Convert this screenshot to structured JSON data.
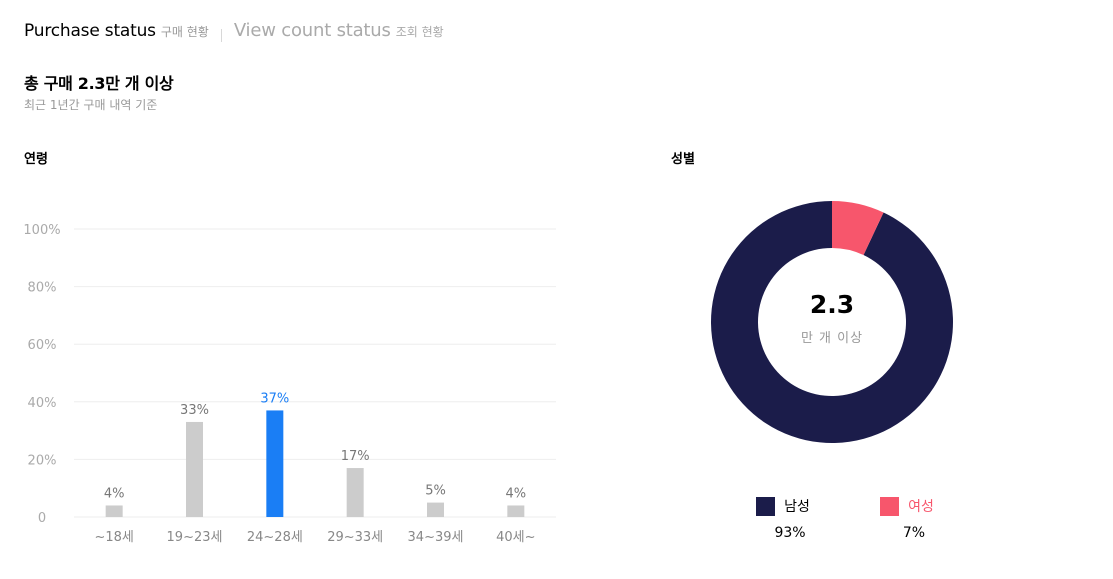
{
  "tabs": [
    {
      "label": "Purchase status",
      "sublabel": "구매 현황",
      "active": true
    },
    {
      "label": "View count status",
      "sublabel": "조회 현황",
      "active": false
    }
  ],
  "summary": {
    "headline": "총 구매 2.3만 개 이상",
    "subline": "최근 1년간 구매 내역 기준"
  },
  "colors": {
    "bar_default": "#cccccc",
    "bar_highlight": "#1a7ef5",
    "male": "#1b1c4a",
    "female": "#f7566c",
    "axis_text": "#aaaaaa",
    "grid": "#eeeeee"
  },
  "chart_data": [
    {
      "type": "bar",
      "title": "연령",
      "categories": [
        "~18세",
        "19~23세",
        "24~28세",
        "29~33세",
        "34~39세",
        "40세~"
      ],
      "values": [
        4,
        33,
        37,
        17,
        5,
        4
      ],
      "value_labels": [
        "4%",
        "33%",
        "37%",
        "17%",
        "5%",
        "4%"
      ],
      "highlight_index": 2,
      "ylim": [
        0,
        100
      ],
      "yticks": [
        0,
        20,
        40,
        60,
        80,
        100
      ],
      "ytick_labels": [
        "0",
        "20%",
        "40%",
        "60%",
        "80%",
        "100%"
      ],
      "grid": true
    },
    {
      "type": "pie",
      "title": "성별",
      "donut": true,
      "center_value": "2.3",
      "center_unit": "만 개 이상",
      "series": [
        {
          "name": "남성",
          "value": 93,
          "label": "93%"
        },
        {
          "name": "여성",
          "value": 7,
          "label": "7%"
        }
      ],
      "legend_position": "bottom"
    }
  ]
}
